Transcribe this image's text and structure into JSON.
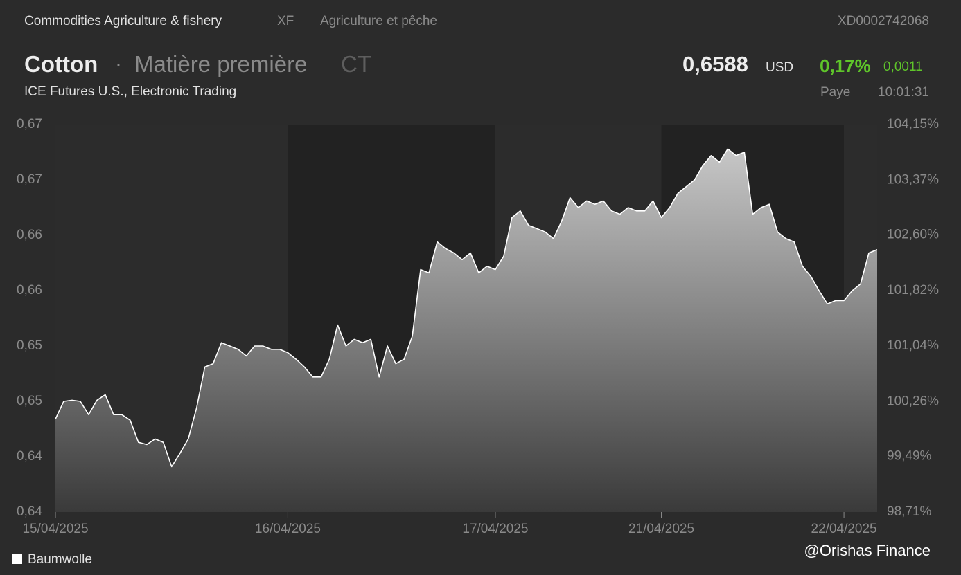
{
  "header": {
    "breadcrumb": [
      "Commodities Agriculture & fishery",
      "XF",
      "Agriculture et pêche"
    ],
    "isin": "XD0002742068",
    "name": "Cotton",
    "separator": "·",
    "asset_class": "Matière première",
    "symbol": "CT",
    "price": "0,6588",
    "currency": "USD",
    "change_pct": "0,17%",
    "change_abs": "0,0011",
    "exchange": "ICE Futures U.S., Electronic Trading",
    "status": "Paye",
    "time": "10:01:31"
  },
  "chart_data": {
    "type": "area",
    "series": [
      {
        "name": "Baumwolle",
        "color": "#ffffff",
        "values": [
          0.6435,
          0.6451,
          0.6452,
          0.6451,
          0.6439,
          0.6452,
          0.6457,
          0.6439,
          0.6439,
          0.6434,
          0.6414,
          0.6412,
          0.6417,
          0.6414,
          0.6392,
          0.6404,
          0.6417,
          0.6445,
          0.6482,
          0.6485,
          0.6504,
          0.6501,
          0.6498,
          0.6492,
          0.6501,
          0.6501,
          0.6498,
          0.6498,
          0.6495,
          0.6489,
          0.6482,
          0.6473,
          0.6473,
          0.6489,
          0.652,
          0.6501,
          0.6507,
          0.6504,
          0.6507,
          0.6473,
          0.6501,
          0.6485,
          0.6489,
          0.651,
          0.657,
          0.6567,
          0.6595,
          0.6589,
          0.6585,
          0.6579,
          0.6585,
          0.6567,
          0.6573,
          0.657,
          0.6582,
          0.6617,
          0.6623,
          0.661,
          0.6607,
          0.6604,
          0.6598,
          0.6614,
          0.6635,
          0.6626,
          0.6632,
          0.6629,
          0.6632,
          0.6623,
          0.662,
          0.6626,
          0.6623,
          0.6623,
          0.6632,
          0.6617,
          0.6626,
          0.6639,
          0.6645,
          0.6651,
          0.6664,
          0.6673,
          0.6667,
          0.6679,
          0.6673,
          0.6676,
          0.662,
          0.6626,
          0.6629,
          0.6604,
          0.6598,
          0.6595,
          0.6573,
          0.6564,
          0.6551,
          0.6539,
          0.6542,
          0.6542,
          0.6551,
          0.6557,
          0.6585,
          0.6588
        ]
      }
    ],
    "xlim": [
      0,
      99
    ],
    "xticks": [
      {
        "value": 0,
        "label": "15/04/2025"
      },
      {
        "value": 28,
        "label": "16/04/2025"
      },
      {
        "value": 53,
        "label": "17/04/2025"
      },
      {
        "value": 73,
        "label": "21/04/2025"
      },
      {
        "value": 95,
        "label": "22/04/2025"
      }
    ],
    "ylim": [
      0.6351,
      0.6701
    ],
    "yticks": [
      {
        "value": 0.6351,
        "label": "0,64"
      },
      {
        "value": 0.6401,
        "label": "0,64"
      },
      {
        "value": 0.6451,
        "label": "0,65"
      },
      {
        "value": 0.6501,
        "label": "0,65"
      },
      {
        "value": 0.6551,
        "label": "0,66"
      },
      {
        "value": 0.6601,
        "label": "0,66"
      },
      {
        "value": 0.6651,
        "label": "0,67"
      },
      {
        "value": 0.6701,
        "label": "0,67"
      }
    ],
    "y2lim": [
      98.71,
      104.15
    ],
    "y2ticks": [
      {
        "value": 98.71,
        "label": "98,71%"
      },
      {
        "value": 99.49,
        "label": "99,49%"
      },
      {
        "value": 100.26,
        "label": "100,26%"
      },
      {
        "value": 101.04,
        "label": "101,04%"
      },
      {
        "value": 101.82,
        "label": "101,82%"
      },
      {
        "value": 102.6,
        "label": "102,60%"
      },
      {
        "value": 103.37,
        "label": "103,37%"
      },
      {
        "value": 104.15,
        "label": "104,15%"
      }
    ],
    "grid": false,
    "legend": "bottom-left"
  },
  "watermark": "@Orishas Finance"
}
